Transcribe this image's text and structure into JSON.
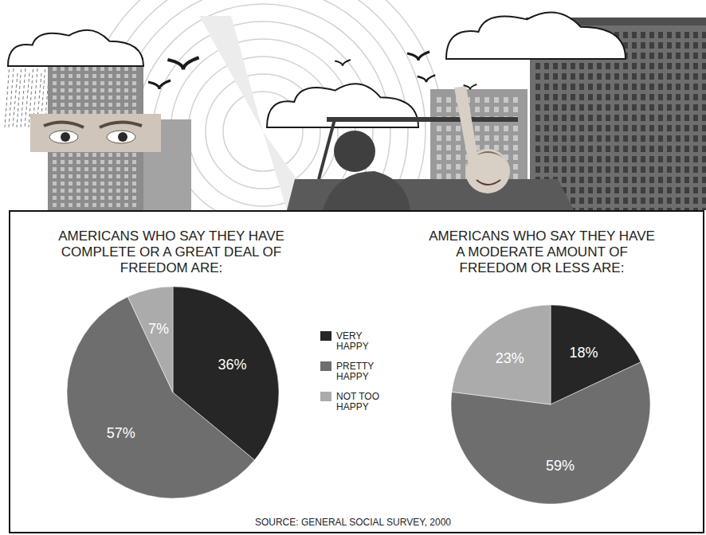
{
  "chart_data": [
    {
      "type": "pie",
      "title": "AMERICANS WHO SAY THEY HAVE COMPLETE OR A GREAT DEAL OF FREEDOM ARE:",
      "categories": [
        "VERY HAPPY",
        "PRETTY HAPPY",
        "NOT TOO HAPPY"
      ],
      "values": [
        36,
        57,
        7
      ],
      "value_labels": [
        "36%",
        "57%",
        "7%"
      ],
      "colors": [
        "#262626",
        "#6e6e6e",
        "#ababab"
      ],
      "data_labels": true,
      "legend": "right"
    },
    {
      "type": "pie",
      "title": "AMERICANS WHO SAY THEY HAVE A MODERATE AMOUNT OF FREEDOM OR LESS ARE:",
      "categories": [
        "VERY HAPPY",
        "PRETTY HAPPY",
        "NOT TOO HAPPY"
      ],
      "values": [
        18,
        59,
        23
      ],
      "value_labels": [
        "18%",
        "59%",
        "23%"
      ],
      "colors": [
        "#262626",
        "#6e6e6e",
        "#ababab"
      ],
      "data_labels": true
    }
  ],
  "source": "SOURCE: GENERAL SOCIAL SURVEY, 2000"
}
